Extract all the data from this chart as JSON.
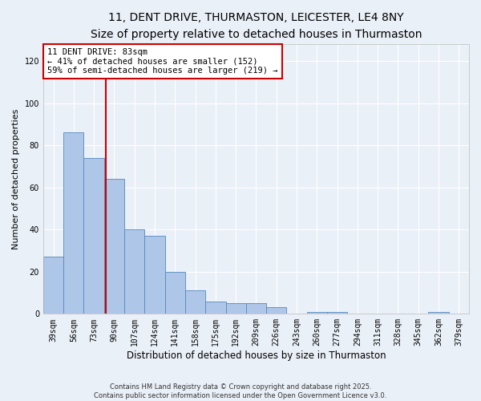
{
  "title_line1": "11, DENT DRIVE, THURMASTON, LEICESTER, LE4 8NY",
  "title_line2": "Size of property relative to detached houses in Thurmaston",
  "categories": [
    "39sqm",
    "56sqm",
    "73sqm",
    "90sqm",
    "107sqm",
    "124sqm",
    "141sqm",
    "158sqm",
    "175sqm",
    "192sqm",
    "209sqm",
    "226sqm",
    "243sqm",
    "260sqm",
    "277sqm",
    "294sqm",
    "311sqm",
    "328sqm",
    "345sqm",
    "362sqm",
    "379sqm"
  ],
  "values": [
    27,
    86,
    74,
    64,
    40,
    37,
    20,
    11,
    6,
    5,
    5,
    3,
    0,
    1,
    1,
    0,
    0,
    0,
    0,
    1,
    0
  ],
  "bar_color": "#aec6e8",
  "bar_edge_color": "#5588bb",
  "bar_width": 1.0,
  "xlabel": "Distribution of detached houses by size in Thurmaston",
  "ylabel": "Number of detached properties",
  "ylim": [
    0,
    128
  ],
  "yticks": [
    0,
    20,
    40,
    60,
    80,
    100,
    120
  ],
  "red_line_x": 2.59,
  "red_line_color": "#cc0000",
  "annotation_text": "11 DENT DRIVE: 83sqm\n← 41% of detached houses are smaller (152)\n59% of semi-detached houses are larger (219) →",
  "annotation_box_color": "#ffffff",
  "annotation_box_edge": "#cc0000",
  "footer_text": "Contains HM Land Registry data © Crown copyright and database right 2025.\nContains public sector information licensed under the Open Government Licence v3.0.",
  "background_color": "#eaf0f8",
  "grid_color": "#ffffff",
  "title_fontsize": 10,
  "subtitle_fontsize": 9,
  "tick_fontsize": 7,
  "label_fontsize": 8.5,
  "ylabel_fontsize": 8
}
